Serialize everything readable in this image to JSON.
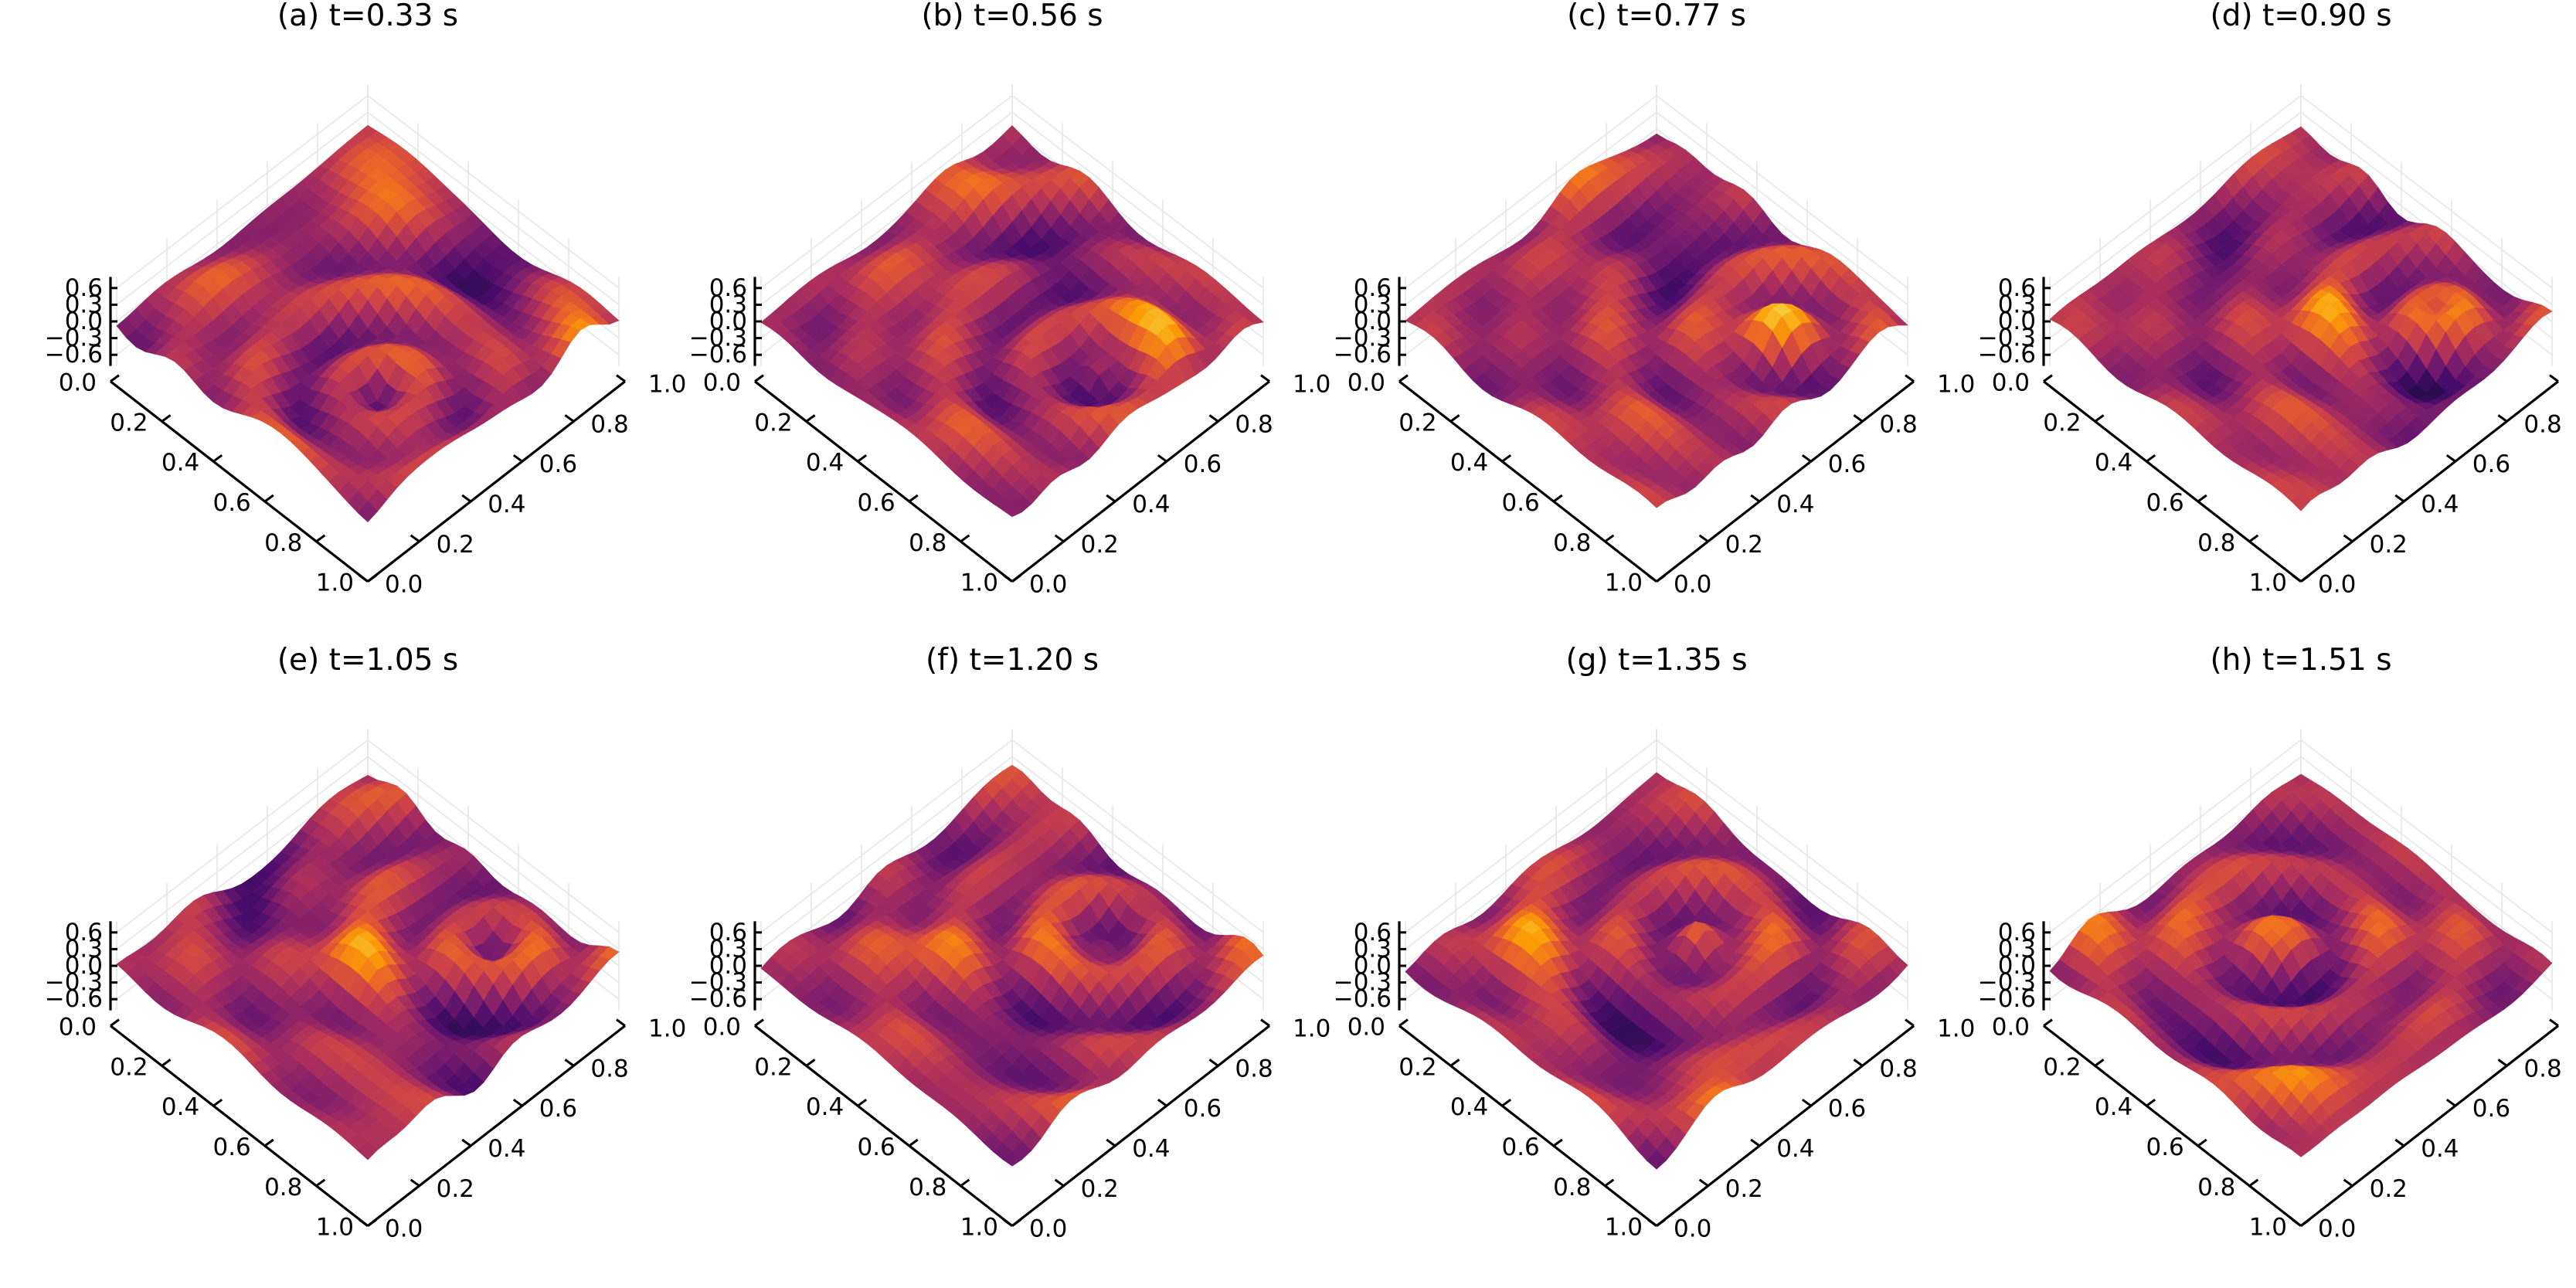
{
  "chart_data": {
    "type": "surface",
    "grid": "on",
    "colormap": [
      "#000004",
      "#1b0c41",
      "#4a0c6b",
      "#781c6d",
      "#a52c60",
      "#cf4446",
      "#ed6925",
      "#fb9b06",
      "#f7d13d",
      "#fcffa4"
    ],
    "x_ticks": [
      "0.0",
      "0.2",
      "0.4",
      "0.6",
      "0.8",
      "1.0"
    ],
    "y_ticks": [
      "0.0",
      "0.2",
      "0.4",
      "0.6",
      "0.8",
      "1.0"
    ],
    "z_ticks": [
      "0.6",
      "0.3",
      "0.0",
      "−0.3",
      "−0.6"
    ],
    "xlim": [
      0,
      1
    ],
    "ylim": [
      0,
      1
    ],
    "zlim": [
      -0.8,
      0.8
    ],
    "panels": [
      {
        "title": "(a) t=0.33 s",
        "time": 0.33
      },
      {
        "title": "(b) t=0.56 s",
        "time": 0.56
      },
      {
        "title": "(c) t=0.77 s",
        "time": 0.77
      },
      {
        "title": "(d) t=0.90 s",
        "time": 0.9
      },
      {
        "title": "(e) t=1.05 s",
        "time": 1.05
      },
      {
        "title": "(f) t=1.20 s",
        "time": 1.2
      },
      {
        "title": "(g) t=1.35 s",
        "time": 1.35
      },
      {
        "title": "(h) t=1.51 s",
        "time": 1.51
      }
    ]
  }
}
